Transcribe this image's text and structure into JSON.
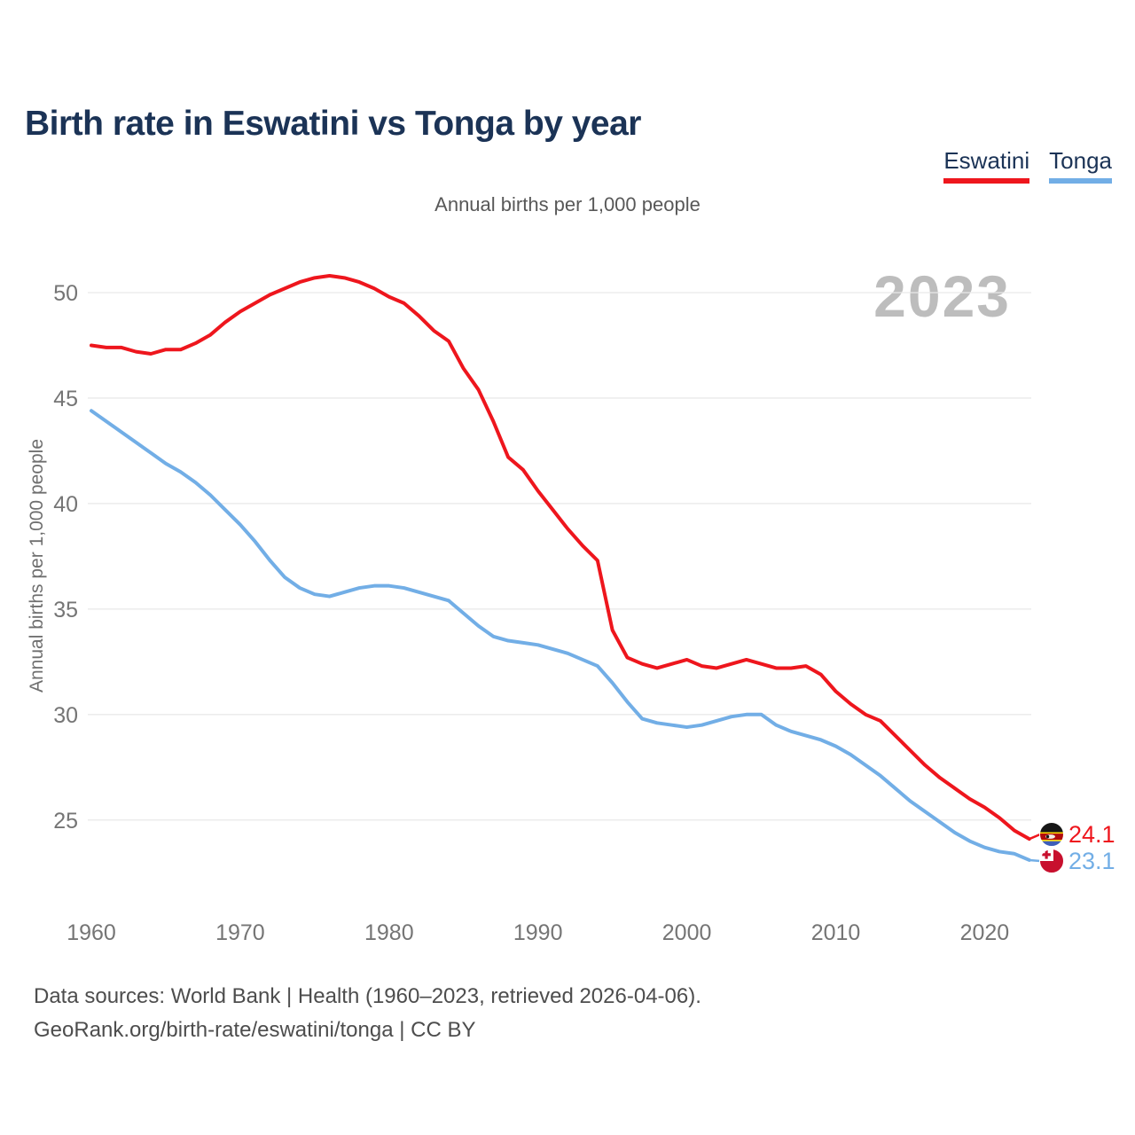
{
  "header": {
    "title": "Birth rate in Eswatini vs Tonga by year"
  },
  "subtitle": "Annual births per 1,000 people",
  "watermark": "2023",
  "y_axis_title": "Annual births per 1,000 people",
  "footer": {
    "line1": "Data sources: World Bank | Health (1960–2023, retrieved 2026-04-06).",
    "line2": "GeoRank.org/birth-rate/eswatini/tonga | CC BY"
  },
  "chart_data": {
    "type": "line",
    "title": "Birth rate in Eswatini vs Tonga by year",
    "ylabel": "Annual births per 1,000 people",
    "grid": "horizontal",
    "legend_position": "top-right",
    "x_ticks": [
      1960,
      1970,
      1980,
      1990,
      2000,
      2010,
      2020
    ],
    "y_ticks": [
      25,
      30,
      35,
      40,
      45,
      50
    ],
    "ylim": [
      23,
      51.5
    ],
    "xlim": [
      1960,
      2023
    ],
    "years": [
      1960,
      1961,
      1962,
      1963,
      1964,
      1965,
      1966,
      1967,
      1968,
      1969,
      1970,
      1971,
      1972,
      1973,
      1974,
      1975,
      1976,
      1977,
      1978,
      1979,
      1980,
      1981,
      1982,
      1983,
      1984,
      1985,
      1986,
      1987,
      1988,
      1989,
      1990,
      1991,
      1992,
      1993,
      1994,
      1995,
      1996,
      1997,
      1998,
      1999,
      2000,
      2001,
      2002,
      2003,
      2004,
      2005,
      2006,
      2007,
      2008,
      2009,
      2010,
      2011,
      2012,
      2013,
      2014,
      2015,
      2016,
      2017,
      2018,
      2019,
      2020,
      2021,
      2022,
      2023
    ],
    "series": [
      {
        "name": "Eswatini",
        "color": "#ee161d",
        "end_label": "24.1",
        "final_year": 2023,
        "values": [
          47.5,
          47.4,
          47.4,
          47.2,
          47.1,
          47.3,
          47.3,
          47.6,
          48.0,
          48.6,
          49.1,
          49.5,
          49.9,
          50.2,
          50.5,
          50.7,
          50.8,
          50.7,
          50.5,
          50.2,
          49.8,
          49.5,
          48.9,
          48.2,
          47.7,
          46.4,
          45.4,
          43.9,
          42.2,
          41.6,
          40.6,
          39.7,
          38.8,
          38.0,
          37.3,
          34.0,
          32.7,
          32.4,
          32.2,
          32.4,
          32.6,
          32.3,
          32.2,
          32.4,
          32.6,
          32.4,
          32.2,
          32.2,
          32.3,
          31.9,
          31.1,
          30.5,
          30.0,
          29.7,
          29.0,
          28.3,
          27.6,
          27.0,
          26.5,
          26.0,
          25.6,
          25.1,
          24.5,
          24.1
        ]
      },
      {
        "name": "Tonga",
        "color": "#72aee6",
        "end_label": "23.1",
        "final_year": 2023,
        "values": [
          44.4,
          43.9,
          43.4,
          42.9,
          42.4,
          41.9,
          41.5,
          41.0,
          40.4,
          39.7,
          39.0,
          38.2,
          37.3,
          36.5,
          36.0,
          35.7,
          35.6,
          35.8,
          36.0,
          36.1,
          36.1,
          36.0,
          35.8,
          35.6,
          35.4,
          34.8,
          34.2,
          33.7,
          33.5,
          33.4,
          33.3,
          33.1,
          32.9,
          32.6,
          32.3,
          31.5,
          30.6,
          29.8,
          29.6,
          29.5,
          29.4,
          29.5,
          29.7,
          29.9,
          30.0,
          30.0,
          29.5,
          29.2,
          29.0,
          28.8,
          28.5,
          28.1,
          27.6,
          27.1,
          26.5,
          25.9,
          25.4,
          24.9,
          24.4,
          24.0,
          23.7,
          23.5,
          23.4,
          23.1
        ]
      }
    ],
    "flag_icons": [
      "eswatini-flag",
      "tonga-flag"
    ]
  }
}
